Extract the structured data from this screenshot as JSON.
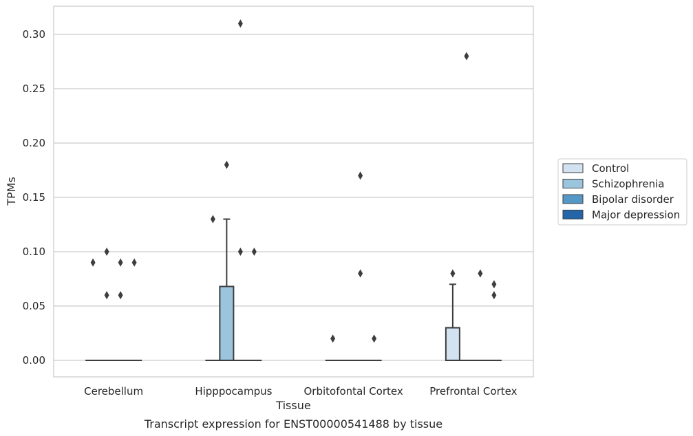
{
  "chart_data": {
    "type": "box",
    "xlabel": "Tissue",
    "ylabel": "TPMs",
    "caption": "Transcript expression for ENST00000541488 by tissue",
    "ylim": [
      -0.03,
      0.325
    ],
    "yticks": [
      "0.00",
      "0.05",
      "0.10",
      "0.15",
      "0.20",
      "0.25",
      "0.30"
    ],
    "yticks_values": [
      0,
      0.05,
      0.1,
      0.15,
      0.2,
      0.25,
      0.3
    ],
    "categories": [
      "Cerebellum",
      "Hipppocampus",
      "Orbitofontal Cortex",
      "Prefrontal Cortex"
    ],
    "grid": "horizontal",
    "legend_position": "right",
    "series": [
      {
        "name": "Control",
        "color": "#d2e2f0"
      },
      {
        "name": "Schizophrenia",
        "color": "#9bc4dd"
      },
      {
        "name": "Bipolar disorder",
        "color": "#5597c5"
      },
      {
        "name": "Major depression",
        "color": "#2365a6"
      }
    ],
    "boxes": [
      {
        "category": 0,
        "series": 0,
        "q1": 0,
        "median": 0,
        "q3": 0,
        "whisker_low": 0,
        "whisker_high": 0,
        "outliers": [
          0.09
        ]
      },
      {
        "category": 0,
        "series": 1,
        "q1": 0,
        "median": 0,
        "q3": 0,
        "whisker_low": 0,
        "whisker_high": 0,
        "outliers": [
          0.1,
          0.06
        ]
      },
      {
        "category": 0,
        "series": 2,
        "q1": 0,
        "median": 0,
        "q3": 0,
        "whisker_low": 0,
        "whisker_high": 0,
        "outliers": [
          0.09,
          0.06
        ]
      },
      {
        "category": 0,
        "series": 3,
        "q1": 0,
        "median": 0,
        "q3": 0,
        "whisker_low": 0,
        "whisker_high": 0,
        "outliers": [
          0.09
        ]
      },
      {
        "category": 1,
        "series": 0,
        "q1": 0,
        "median": 0,
        "q3": 0,
        "whisker_low": 0,
        "whisker_high": 0,
        "outliers": [
          0.13
        ]
      },
      {
        "category": 1,
        "series": 1,
        "q1": 0,
        "median": 0,
        "q3": 0.068,
        "whisker_low": 0,
        "whisker_high": 0.13,
        "outliers": [
          0.18
        ]
      },
      {
        "category": 1,
        "series": 2,
        "q1": 0,
        "median": 0,
        "q3": 0,
        "whisker_low": 0,
        "whisker_high": 0,
        "outliers": [
          0.31,
          0.1
        ]
      },
      {
        "category": 1,
        "series": 3,
        "q1": 0,
        "median": 0,
        "q3": 0,
        "whisker_low": 0,
        "whisker_high": 0,
        "outliers": [
          0.1
        ]
      },
      {
        "category": 2,
        "series": 0,
        "q1": 0,
        "median": 0,
        "q3": 0,
        "whisker_low": 0,
        "whisker_high": 0,
        "outliers": [
          0.02
        ]
      },
      {
        "category": 2,
        "series": 1,
        "q1": 0,
        "median": 0,
        "q3": 0,
        "whisker_low": 0,
        "whisker_high": 0,
        "outliers": []
      },
      {
        "category": 2,
        "series": 2,
        "q1": 0,
        "median": 0,
        "q3": 0,
        "whisker_low": 0,
        "whisker_high": 0,
        "outliers": [
          0.17,
          0.08
        ]
      },
      {
        "category": 2,
        "series": 3,
        "q1": 0,
        "median": 0,
        "q3": 0,
        "whisker_low": 0,
        "whisker_high": 0,
        "outliers": [
          0.02
        ]
      },
      {
        "category": 3,
        "series": 0,
        "q1": 0,
        "median": 0,
        "q3": 0.03,
        "whisker_low": 0,
        "whisker_high": 0.07,
        "outliers": [
          0.08
        ]
      },
      {
        "category": 3,
        "series": 1,
        "q1": 0,
        "median": 0,
        "q3": 0,
        "whisker_low": 0,
        "whisker_high": 0,
        "outliers": [
          0.28
        ]
      },
      {
        "category": 3,
        "series": 2,
        "q1": 0,
        "median": 0,
        "q3": 0,
        "whisker_low": 0,
        "whisker_high": 0,
        "outliers": [
          0.08
        ]
      },
      {
        "category": 3,
        "series": 3,
        "q1": 0,
        "median": 0,
        "q3": 0,
        "whisker_low": 0,
        "whisker_high": 0,
        "outliers": [
          0.07,
          0.06
        ]
      }
    ]
  }
}
